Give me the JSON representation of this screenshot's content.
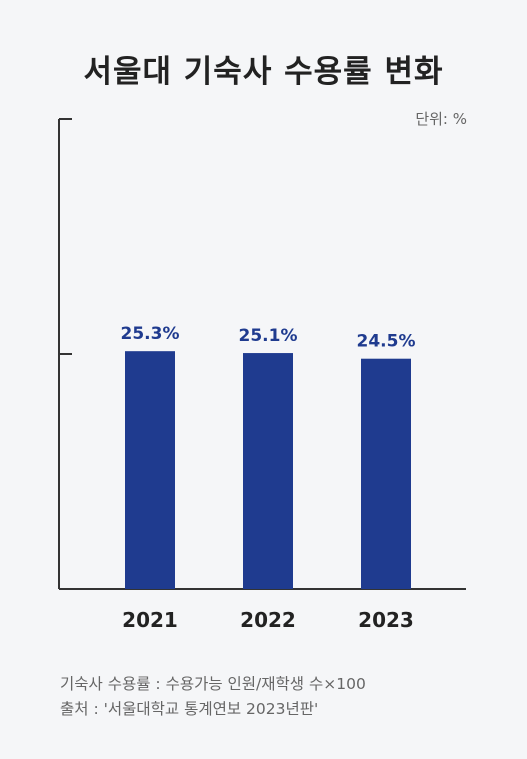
{
  "chart_data": {
    "type": "bar",
    "title": "서울대 기숙사 수용률 변화",
    "unit_label": "단위: %",
    "categories": [
      "2021",
      "2022",
      "2023"
    ],
    "values": [
      25.3,
      25.1,
      24.5
    ],
    "value_labels": [
      "25.3%",
      "25.1%",
      "24.5%"
    ],
    "ylim": [
      0,
      50
    ],
    "grid": false,
    "bar_color": "#1f3b8f"
  },
  "notes": {
    "formula": "기숙사 수용률 : 수용가능 인원/재학생 수×100",
    "source": "출처 : '서울대학교 통계연보 2023년판'"
  }
}
